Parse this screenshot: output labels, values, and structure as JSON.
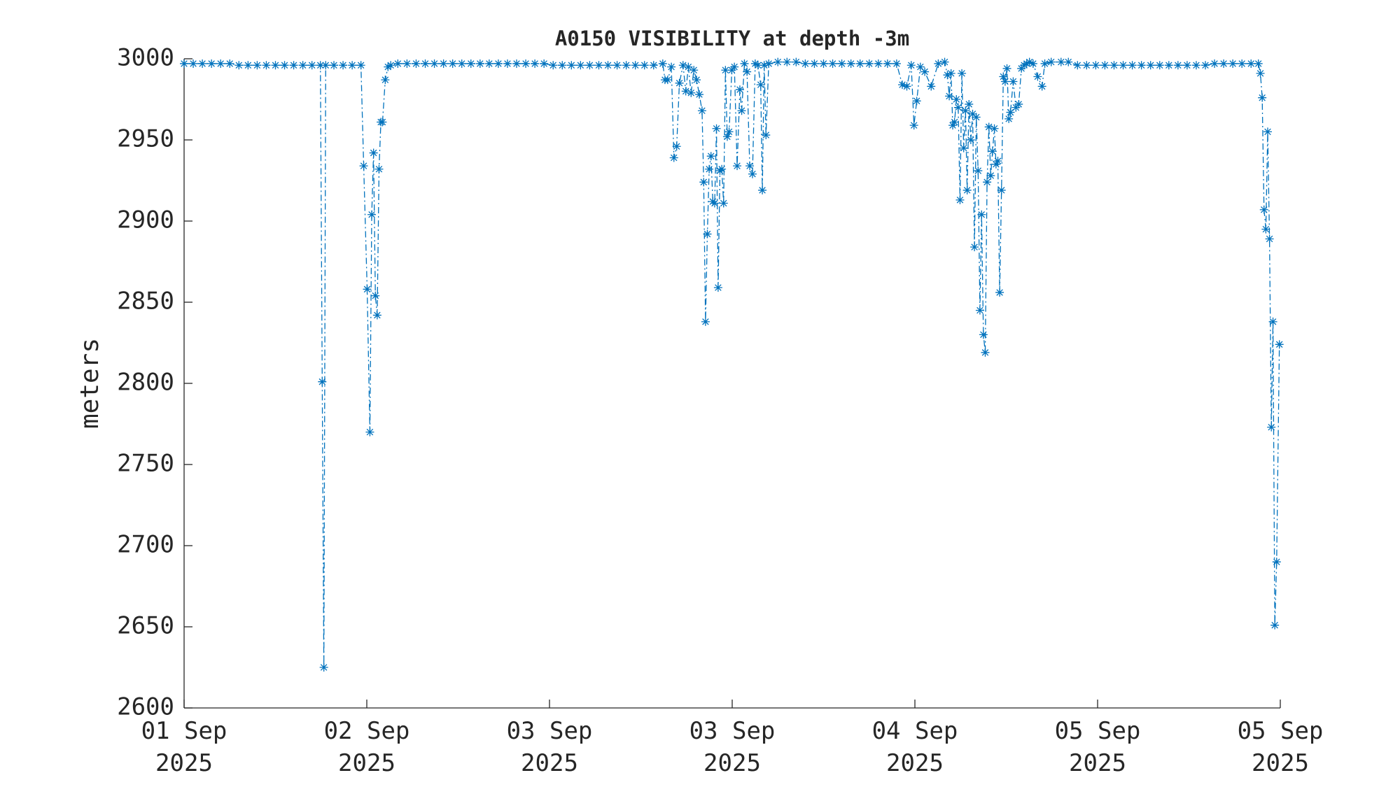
{
  "chart_data": {
    "type": "line",
    "title": "A0150 VISIBILITY at depth -3m",
    "ylabel": "meters",
    "color": "#0072bd",
    "xlim": [
      0,
      6
    ],
    "xticks": [
      {
        "value": 0,
        "label": "01 Sep\n2025"
      },
      {
        "value": 1,
        "label": "02 Sep\n2025"
      },
      {
        "value": 2,
        "label": "03 Sep\n2025"
      },
      {
        "value": 3,
        "label": "03 Sep\n2025"
      },
      {
        "value": 4,
        "label": "04 Sep\n2025"
      },
      {
        "value": 5,
        "label": "05 Sep\n2025"
      },
      {
        "value": 6,
        "label": "05 Sep\n2025"
      }
    ],
    "ylim": [
      2600,
      3000
    ],
    "yticks": [
      2600,
      2650,
      2700,
      2750,
      2800,
      2850,
      2900,
      2950,
      3000
    ],
    "x": [
      0,
      0.05,
      0.1,
      0.15,
      0.2,
      0.25,
      0.3,
      0.35,
      0.4,
      0.45,
      0.5,
      0.55,
      0.6,
      0.65,
      0.7,
      0.746,
      0.756,
      0.765,
      0.775,
      0.82,
      0.87,
      0.92,
      0.968,
      0.983,
      1.002,
      1.017,
      1.027,
      1.037,
      1.047,
      1.057,
      1.067,
      1.077,
      1.086,
      1.101,
      1.116,
      1.131,
      1.17,
      1.22,
      1.27,
      1.32,
      1.37,
      1.42,
      1.47,
      1.52,
      1.57,
      1.62,
      1.67,
      1.72,
      1.77,
      1.82,
      1.87,
      1.92,
      1.97,
      2.02,
      2.07,
      2.12,
      2.17,
      2.22,
      2.27,
      2.32,
      2.37,
      2.42,
      2.47,
      2.52,
      2.57,
      2.62,
      2.632,
      2.647,
      2.667,
      2.681,
      2.696,
      2.711,
      2.731,
      2.746,
      2.76,
      2.775,
      2.79,
      2.805,
      2.82,
      2.835,
      2.844,
      2.854,
      2.864,
      2.874,
      2.884,
      2.894,
      2.904,
      2.914,
      2.923,
      2.933,
      2.943,
      2.953,
      2.963,
      2.973,
      2.983,
      2.998,
      3.012,
      3.027,
      3.042,
      3.052,
      3.067,
      3.081,
      3.096,
      3.111,
      3.126,
      3.141,
      3.156,
      3.165,
      3.175,
      3.185,
      3.2,
      3.25,
      3.3,
      3.35,
      3.4,
      3.45,
      3.5,
      3.55,
      3.6,
      3.65,
      3.7,
      3.75,
      3.8,
      3.85,
      3.9,
      3.931,
      3.956,
      3.98,
      3.995,
      4.01,
      4.03,
      4.054,
      4.089,
      4.128,
      4.163,
      4.178,
      4.188,
      4.198,
      4.207,
      4.217,
      4.227,
      4.237,
      4.247,
      4.257,
      4.267,
      4.277,
      4.286,
      4.296,
      4.306,
      4.316,
      4.326,
      4.336,
      4.346,
      4.356,
      4.365,
      4.375,
      4.385,
      4.395,
      4.405,
      4.415,
      4.425,
      4.435,
      4.444,
      4.454,
      4.464,
      4.474,
      4.484,
      4.494,
      4.504,
      4.514,
      4.523,
      4.538,
      4.553,
      4.568,
      4.583,
      4.598,
      4.612,
      4.627,
      4.647,
      4.672,
      4.696,
      4.711,
      4.746,
      4.8,
      4.84,
      4.89,
      4.94,
      4.99,
      5.04,
      5.09,
      5.14,
      5.19,
      5.24,
      5.29,
      5.34,
      5.39,
      5.44,
      5.49,
      5.54,
      5.59,
      5.64,
      5.69,
      5.74,
      5.79,
      5.84,
      5.88,
      5.891,
      5.901,
      5.911,
      5.921,
      5.931,
      5.941,
      5.951,
      5.96,
      5.97,
      5.98,
      5.995
    ],
    "values": [
      2997,
      2997,
      2997,
      2997,
      2997,
      2997,
      2996,
      2996,
      2996,
      2996,
      2996,
      2996,
      2996,
      2996,
      2996,
      2996,
      2801,
      2625,
      2996,
      2996,
      2996,
      2996,
      2996,
      2934,
      2858,
      2770,
      2904,
      2942,
      2854,
      2842,
      2932,
      2961,
      2961,
      2987,
      2995,
      2996,
      2997,
      2997,
      2997,
      2997,
      2997,
      2997,
      2997,
      2997,
      2997,
      2997,
      2997,
      2997,
      2997,
      2997,
      2997,
      2997,
      2997,
      2996,
      2996,
      2996,
      2996,
      2996,
      2996,
      2996,
      2996,
      2996,
      2996,
      2996,
      2996,
      2997,
      2987,
      2987,
      2995,
      2939,
      2946,
      2985,
      2996,
      2980,
      2995,
      2979,
      2993,
      2987,
      2978,
      2968,
      2924,
      2838,
      2892,
      2932,
      2940,
      2912,
      2911,
      2957,
      2859,
      2931,
      2932,
      2911,
      2993,
      2952,
      2955,
      2993,
      2995,
      2934,
      2981,
      2968,
      2997,
      2992,
      2934,
      2929,
      2997,
      2996,
      2984,
      2919,
      2996,
      2953,
      2997,
      2998,
      2998,
      2998,
      2997,
      2997,
      2997,
      2997,
      2997,
      2997,
      2997,
      2997,
      2997,
      2997,
      2997,
      2984,
      2983,
      2996,
      2959,
      2974,
      2995,
      2992,
      2983,
      2997,
      2998,
      2990,
      2977,
      2991,
      2959,
      2961,
      2975,
      2970,
      2913,
      2991,
      2945,
      2968,
      2919,
      2972,
      2950,
      2966,
      2884,
      2964,
      2931,
      2845,
      2904,
      2830,
      2819,
      2924,
      2958,
      2928,
      2943,
      2957,
      2935,
      2937,
      2856,
      2919,
      2989,
      2986,
      2994,
      2963,
      2967,
      2986,
      2970,
      2972,
      2994,
      2996,
      2997,
      2998,
      2997,
      2989,
      2983,
      2997,
      2998,
      2998,
      2998,
      2996,
      2996,
      2996,
      2996,
      2996,
      2996,
      2996,
      2996,
      2996,
      2996,
      2996,
      2996,
      2996,
      2996,
      2996,
      2997,
      2997,
      2997,
      2997,
      2997,
      2997,
      2991,
      2976,
      2907,
      2895,
      2955,
      2889,
      2773,
      2838,
      2651,
      2690,
      2824
    ]
  }
}
